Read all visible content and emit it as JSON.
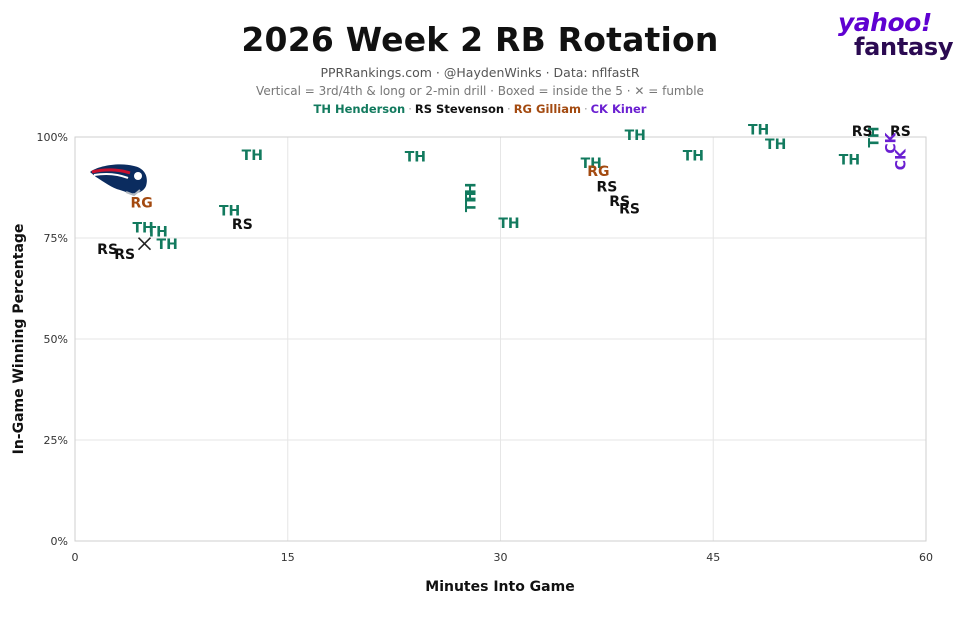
{
  "chart_data": {
    "type": "scatter",
    "title": "2026 Week 2 RB Rotation",
    "subtitle": "PPRRankings.com · @HaydenWinks · Data: nflfastR",
    "note": "Vertical = 3rd/4th & long or 2-min drill · Boxed = inside the 5 · ✕ = fumble",
    "xlabel": "Minutes Into Game",
    "ylabel": "In-Game Winning Percentage",
    "xlim": [
      0,
      60
    ],
    "ylim": [
      0,
      100
    ],
    "xticks": [
      "0",
      "15",
      "30",
      "45",
      "60"
    ],
    "yticks": [
      "0%",
      "25%",
      "50%",
      "75%",
      "100%"
    ],
    "grid": true,
    "legend": [
      {
        "label": "TH Henderson",
        "color": "#127a5e"
      },
      {
        "label": "RS Stevenson",
        "color": "#111111"
      },
      {
        "label": "RG Gilliam",
        "color": "#a34a10"
      },
      {
        "label": "CK Kiner",
        "color": "#6a1fd1"
      }
    ],
    "series": [
      {
        "name": "TH Henderson",
        "code": "TH",
        "color": "#127a5e",
        "points": [
          {
            "x": 12.5,
            "y": 95.5
          },
          {
            "x": 10.9,
            "y": 81.8
          },
          {
            "x": 4.8,
            "y": 77.6
          },
          {
            "x": 5.8,
            "y": 76.6
          },
          {
            "x": 6.5,
            "y": 73.5
          },
          {
            "x": 24,
            "y": 95.2
          },
          {
            "x": 27.9,
            "y": 86.1,
            "vertical": true
          },
          {
            "x": 27.9,
            "y": 84,
            "vertical": true
          },
          {
            "x": 30.6,
            "y": 78.7
          },
          {
            "x": 36.4,
            "y": 93.6
          },
          {
            "x": 39.5,
            "y": 100.5
          },
          {
            "x": 43.6,
            "y": 95.4
          },
          {
            "x": 48.2,
            "y": 101.8
          },
          {
            "x": 49.4,
            "y": 98.3
          },
          {
            "x": 54.6,
            "y": 94.4
          },
          {
            "x": 56.3,
            "y": 100,
            "vertical": true
          }
        ]
      },
      {
        "name": "RS Stevenson",
        "code": "RS",
        "color": "#111111",
        "points": [
          {
            "x": 2.3,
            "y": 72.3
          },
          {
            "x": 3.5,
            "y": 71.1
          },
          {
            "x": 11.8,
            "y": 78.5
          },
          {
            "x": 37.5,
            "y": 87.7
          },
          {
            "x": 38.4,
            "y": 84.2
          },
          {
            "x": 39.1,
            "y": 82.3
          },
          {
            "x": 55.5,
            "y": 101.5
          },
          {
            "x": 58.2,
            "y": 101.5
          }
        ]
      },
      {
        "name": "RG Gilliam",
        "code": "RG",
        "color": "#a34a10",
        "points": [
          {
            "x": 4.7,
            "y": 83.8
          },
          {
            "x": 36.9,
            "y": 91.6
          }
        ]
      },
      {
        "name": "CK Kiner",
        "code": "CK",
        "color": "#6a1fd1",
        "points": [
          {
            "x": 57.5,
            "y": 98.5,
            "vertical": true
          },
          {
            "x": 58.2,
            "y": 94.4,
            "vertical": true
          }
        ]
      }
    ],
    "fumbles": [
      {
        "x": 4.9,
        "y": 73.6
      }
    ]
  },
  "branding": {
    "line1": "yahoo!",
    "line2": "fantasy",
    "team_logo": "patriots-helmet-logo"
  }
}
